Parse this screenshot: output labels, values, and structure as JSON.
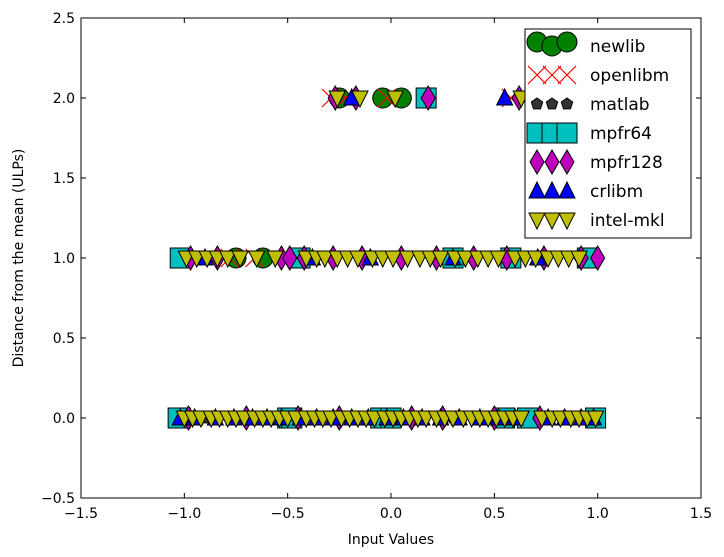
{
  "chart_data": {
    "type": "scatter",
    "title": "",
    "xlabel": "Input Values",
    "ylabel": "Distance from the mean (ULPs)",
    "xlim": [
      -1.5,
      1.5
    ],
    "ylim": [
      -0.5,
      2.5
    ],
    "xticks": [
      -1.5,
      -1.0,
      -0.5,
      0.0,
      0.5,
      1.0,
      1.5
    ],
    "yticks": [
      -0.5,
      0.0,
      0.5,
      1.0,
      1.5,
      2.0,
      2.5
    ],
    "xtick_labels": [
      "−1.5",
      "−1.0",
      "−0.5",
      "0.0",
      "0.5",
      "1.0",
      "1.5"
    ],
    "ytick_labels": [
      "−0.5",
      "0.0",
      "0.5",
      "1.0",
      "1.5",
      "2.0",
      "2.5"
    ],
    "grid": false,
    "legend_position": "top-right",
    "series": [
      {
        "name": "newlib",
        "marker": "circle",
        "color": "#008000",
        "x": [
          -0.25,
          -0.04,
          0.05,
          -0.75,
          -0.62
        ],
        "y": [
          2,
          2,
          2,
          1,
          1
        ]
      },
      {
        "name": "openlibm",
        "marker": "x",
        "color": "#ff0000",
        "x": [
          -0.29,
          -0.22,
          -0.02,
          0.58,
          0.7,
          -0.78,
          -0.66
        ],
        "y": [
          2,
          2,
          2,
          2,
          2,
          1,
          1
        ]
      },
      {
        "name": "matlab",
        "marker": "pentagon",
        "color": "#333333",
        "x": [
          -0.9,
          -0.7,
          0.3,
          0.55
        ],
        "y": [
          0,
          0,
          0,
          1
        ]
      },
      {
        "name": "mpfr64",
        "marker": "square",
        "color": "#00bfbf",
        "x": [
          -1.02,
          -0.5,
          -0.05,
          0.55,
          0.17,
          -1.02,
          -0.44,
          0.3,
          0.58,
          0.95,
          -1.03,
          -0.48,
          0.0,
          0.66,
          0.99
        ],
        "y": [
          0,
          0,
          0,
          0,
          2,
          1,
          1,
          1,
          1,
          1,
          0,
          0,
          0,
          0,
          0
        ]
      },
      {
        "name": "mpfr128",
        "marker": "diamond",
        "color": "#bf00bf",
        "x": [
          -0.27,
          -0.17,
          0.18,
          0.62,
          -0.97,
          -0.84,
          -0.53,
          -0.49,
          -0.42,
          -0.28,
          -0.14,
          0.05,
          0.22,
          0.4,
          0.56,
          0.74,
          0.92,
          1.0,
          -0.98,
          -0.7,
          -0.45,
          -0.25,
          0.1,
          0.25,
          0.5,
          0.72
        ],
        "y": [
          2,
          2,
          2,
          2,
          1,
          1,
          1,
          1,
          1,
          1,
          1,
          1,
          1,
          1,
          1,
          1,
          1,
          1,
          0,
          0,
          0,
          0,
          0,
          0,
          0,
          0
        ]
      },
      {
        "name": "crlibm",
        "marker": "triangle-up",
        "color": "#0000ff",
        "x": [
          -0.19,
          0.55,
          -0.9,
          -0.38,
          -0.1,
          0.3,
          0.71,
          -1.02,
          -0.95,
          -0.85,
          -0.76,
          -0.67,
          -0.6,
          -0.53,
          -0.44,
          -0.36,
          -0.28,
          -0.19,
          -0.11,
          -0.02,
          0.06,
          0.15,
          0.24,
          0.33,
          0.43,
          0.52,
          0.6,
          0.76,
          0.84,
          0.92,
          0.98
        ],
        "y": [
          2,
          2,
          1,
          1,
          1,
          1,
          1,
          0,
          0,
          0,
          0,
          0,
          0,
          0,
          0,
          0,
          0,
          0,
          0,
          0,
          0,
          0,
          0,
          0,
          0,
          0,
          0,
          0,
          0,
          0,
          0
        ]
      },
      {
        "name": "intel-mkl",
        "marker": "triangle-down",
        "color": "#bfbf00",
        "x": [
          -0.26,
          -0.15,
          0.02,
          0.63,
          -0.99,
          -0.94,
          -0.89,
          -0.84,
          -0.79,
          -0.73,
          -0.65,
          -0.56,
          -0.41,
          -0.36,
          -0.32,
          -0.26,
          -0.21,
          -0.16,
          -0.09,
          -0.04,
          0.01,
          0.08,
          0.14,
          0.19,
          0.24,
          0.31,
          0.36,
          0.42,
          0.47,
          0.52,
          0.6,
          0.65,
          0.7,
          0.76,
          0.81,
          0.86,
          0.91,
          -1.0,
          -0.96,
          -0.92,
          -0.87,
          -0.83,
          -0.79,
          -0.75,
          -0.71,
          -0.66,
          -0.62,
          -0.58,
          -0.54,
          -0.5,
          -0.46,
          -0.41,
          -0.37,
          -0.33,
          -0.29,
          -0.24,
          -0.2,
          -0.16,
          -0.12,
          -0.08,
          -0.03,
          0.01,
          0.05,
          0.09,
          0.13,
          0.17,
          0.22,
          0.26,
          0.3,
          0.35,
          0.39,
          0.43,
          0.47,
          0.51,
          0.55,
          0.59,
          0.63,
          0.73,
          0.78,
          0.82,
          0.87,
          0.91,
          0.95,
          0.99
        ],
        "y": [
          2,
          2,
          2,
          2,
          1,
          1,
          1,
          1,
          1,
          1,
          1,
          1,
          1,
          1,
          1,
          1,
          1,
          1,
          1,
          1,
          1,
          1,
          1,
          1,
          1,
          1,
          1,
          1,
          1,
          1,
          1,
          1,
          1,
          1,
          1,
          1,
          1,
          0,
          0,
          0,
          0,
          0,
          0,
          0,
          0,
          0,
          0,
          0,
          0,
          0,
          0,
          0,
          0,
          0,
          0,
          0,
          0,
          0,
          0,
          0,
          0,
          0,
          0,
          0,
          0,
          0,
          0,
          0,
          0,
          0,
          0,
          0,
          0,
          0,
          0,
          0,
          0,
          0,
          0,
          0,
          0,
          0,
          0,
          0
        ]
      }
    ]
  }
}
